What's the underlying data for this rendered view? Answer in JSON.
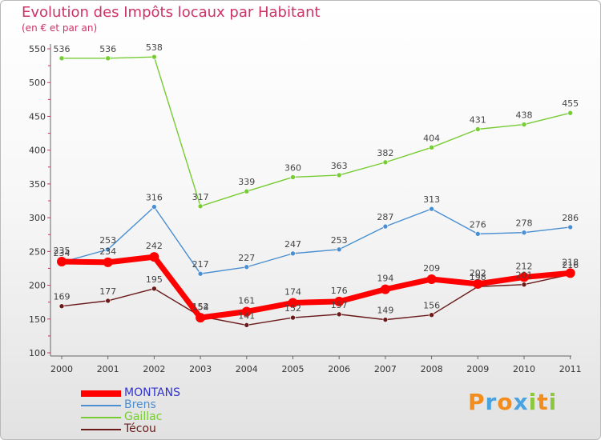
{
  "header": {
    "title": "Evolution des Impôts locaux par Habitant",
    "subtitle": "(en € et par an)"
  },
  "chart_data": {
    "type": "line",
    "title": "Evolution des Impôts locaux par Habitant",
    "subtitle": "(en € et par an)",
    "xlabel": "",
    "ylabel": "",
    "x": [
      "2000",
      "2001",
      "2002",
      "2003",
      "2004",
      "2005",
      "2006",
      "2007",
      "2008",
      "2009",
      "2010",
      "2011"
    ],
    "ylim": [
      100,
      550
    ],
    "yticks": [
      100,
      150,
      200,
      250,
      300,
      350,
      400,
      450,
      500,
      550
    ],
    "grid": false,
    "legend_position": "bottom-left",
    "series": [
      {
        "name": "MONTANS",
        "color": "#ff0000",
        "values": [
          235,
          234,
          242,
          152,
          161,
          174,
          176,
          194,
          209,
          202,
          212,
          218
        ]
      },
      {
        "name": "Brens",
        "color": "#4a8fd1",
        "values": [
          234,
          253,
          316,
          217,
          227,
          247,
          253,
          287,
          313,
          276,
          278,
          286
        ]
      },
      {
        "name": "Gaillac",
        "color": "#77cc33",
        "values": [
          536,
          536,
          538,
          317,
          339,
          360,
          363,
          382,
          404,
          431,
          438,
          455
        ]
      },
      {
        "name": "Técou",
        "color": "#6b1a1a",
        "values": [
          169,
          177,
          195,
          154,
          141,
          152,
          157,
          149,
          156,
          198,
          201,
          216
        ]
      }
    ]
  },
  "legend": {
    "items": [
      {
        "label": "MONTANS",
        "color": "#ff0000",
        "label_color": "#3333cc"
      },
      {
        "label": "Brens",
        "color": "#4a8fd1",
        "label_color": "#4a8fd1"
      },
      {
        "label": "Gaillac",
        "color": "#77cc33",
        "label_color": "#77cc33"
      },
      {
        "label": "Técou",
        "color": "#6b1a1a",
        "label_color": "#6b1a1a"
      }
    ]
  },
  "logo": {
    "text": "Proxiti",
    "letters": [
      "P",
      "r",
      "o",
      "x",
      "i",
      "t",
      "i"
    ],
    "colors": [
      "#f28c1c",
      "#4aa3df",
      "#f28c1c",
      "#4aa3df",
      "#8dc63f",
      "#f28c1c",
      "#8dc63f"
    ]
  }
}
